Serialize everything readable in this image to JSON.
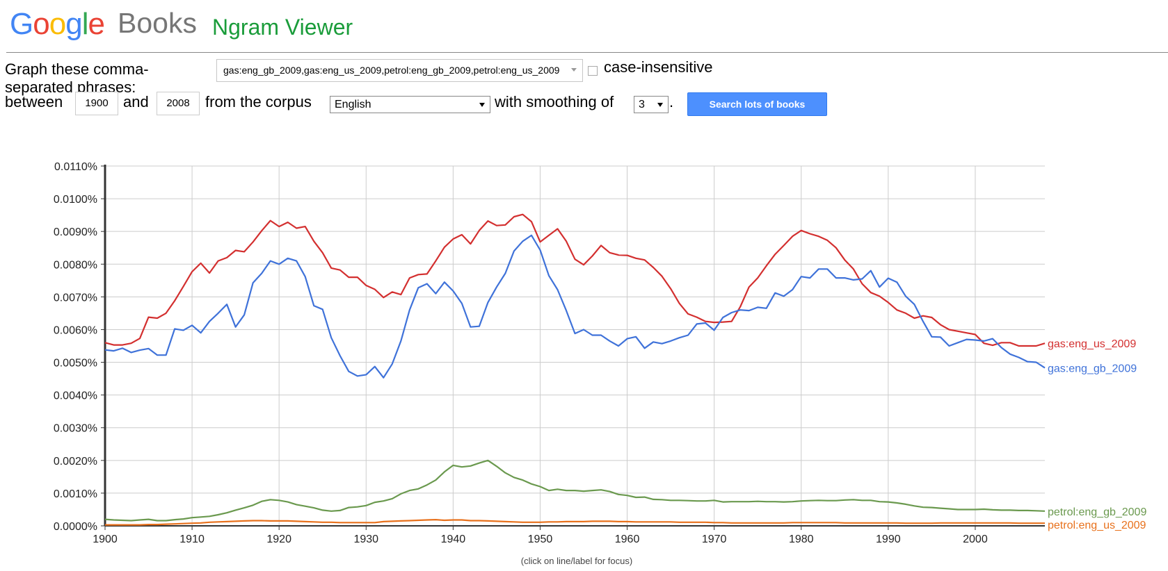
{
  "header": {
    "google_letters": [
      {
        "char": "G",
        "color": "#4285f4"
      },
      {
        "char": "o",
        "color": "#ea4335"
      },
      {
        "char": "o",
        "color": "#fbbc05"
      },
      {
        "char": "g",
        "color": "#4285f4"
      },
      {
        "char": "l",
        "color": "#34a853"
      },
      {
        "char": "e",
        "color": "#ea4335"
      }
    ],
    "books": "Books",
    "title": "Ngram Viewer"
  },
  "form": {
    "graph_label_line1": "Graph these comma-",
    "graph_label_line2": "separated phrases:",
    "query_value": "gas:eng_gb_2009,gas:eng_us_2009,petrol:eng_gb_2009,petrol:eng_us_2009",
    "case_insensitive_label": "case-insensitive",
    "case_insensitive_checked": false,
    "between_label": "between",
    "start_year": "1900",
    "and_label": "and",
    "end_year": "2008",
    "corpus_label": "from the corpus",
    "corpus_value": "English",
    "smoothing_label": "with smoothing of",
    "smoothing_value": "3",
    "period": ".",
    "search_button": "Search lots of books"
  },
  "footer": {
    "note": "(click on line/label for focus)"
  },
  "chart_data": {
    "type": "line",
    "title": "",
    "xlabel": "",
    "ylabel": "",
    "xlim": [
      1900,
      2008
    ],
    "ylim": [
      0,
      0.011
    ],
    "x_ticks": [
      1900,
      1910,
      1920,
      1930,
      1940,
      1950,
      1960,
      1970,
      1980,
      1990,
      2000
    ],
    "y_ticks": [
      "0.0000%",
      "0.0010%",
      "0.0020%",
      "0.0030%",
      "0.0040%",
      "0.0050%",
      "0.0060%",
      "0.0070%",
      "0.0080%",
      "0.0090%",
      "0.0100%",
      "0.0110%"
    ],
    "grid": true,
    "legend": "labels at right end of each line",
    "x_start": 1900,
    "x_step": 1,
    "series": [
      {
        "name": "gas:eng_us_2009",
        "color": "#d32f2f",
        "values": [
          0.0056,
          0.00553,
          0.00553,
          0.00558,
          0.00573,
          0.00638,
          0.00635,
          0.0065,
          0.00688,
          0.00732,
          0.00777,
          0.00803,
          0.00773,
          0.0081,
          0.0082,
          0.00842,
          0.00838,
          0.00868,
          0.00902,
          0.00933,
          0.00915,
          0.00928,
          0.0091,
          0.00915,
          0.0087,
          0.00835,
          0.00788,
          0.00782,
          0.0076,
          0.0076,
          0.00735,
          0.00723,
          0.00698,
          0.00715,
          0.00707,
          0.00758,
          0.00768,
          0.0077,
          0.0081,
          0.00852,
          0.00877,
          0.0089,
          0.00862,
          0.00903,
          0.00932,
          0.00918,
          0.0092,
          0.00945,
          0.00952,
          0.0093,
          0.00868,
          0.00888,
          0.00908,
          0.0087,
          0.00815,
          0.00798,
          0.00825,
          0.00857,
          0.00835,
          0.00828,
          0.00827,
          0.00818,
          0.00813,
          0.0079,
          0.00763,
          0.00725,
          0.0068,
          0.00648,
          0.00638,
          0.00625,
          0.00622,
          0.00623,
          0.00625,
          0.0067,
          0.0073,
          0.00758,
          0.00795,
          0.0083,
          0.00857,
          0.00885,
          0.00903,
          0.00893,
          0.00885,
          0.00873,
          0.0085,
          0.00813,
          0.00785,
          0.0074,
          0.00713,
          0.00702,
          0.00683,
          0.0066,
          0.0065,
          0.00635,
          0.00642,
          0.00637,
          0.00615,
          0.006,
          0.00595,
          0.0059,
          0.00585,
          0.00558,
          0.00552,
          0.0056,
          0.0056,
          0.0055,
          0.0055,
          0.0055,
          0.00558
        ]
      },
      {
        "name": "gas:eng_gb_2009",
        "color": "#3f72d9",
        "values": [
          0.00538,
          0.00535,
          0.00543,
          0.0053,
          0.00537,
          0.00542,
          0.00522,
          0.00522,
          0.00602,
          0.00598,
          0.00613,
          0.0059,
          0.00625,
          0.0065,
          0.00677,
          0.00608,
          0.00645,
          0.00743,
          0.00772,
          0.0081,
          0.008,
          0.00818,
          0.0081,
          0.00762,
          0.00673,
          0.00662,
          0.00575,
          0.0052,
          0.00472,
          0.00458,
          0.00462,
          0.00487,
          0.00453,
          0.00495,
          0.00565,
          0.0066,
          0.00728,
          0.0074,
          0.0071,
          0.00745,
          0.00718,
          0.0068,
          0.00608,
          0.0061,
          0.00683,
          0.0073,
          0.00772,
          0.0084,
          0.0087,
          0.00888,
          0.00843,
          0.00765,
          0.00722,
          0.00658,
          0.00588,
          0.006,
          0.00583,
          0.00583,
          0.00565,
          0.0055,
          0.00572,
          0.00578,
          0.00543,
          0.00562,
          0.00557,
          0.00565,
          0.00575,
          0.00583,
          0.00617,
          0.0062,
          0.00598,
          0.00637,
          0.00652,
          0.0066,
          0.00658,
          0.00668,
          0.00665,
          0.00712,
          0.00702,
          0.00722,
          0.00762,
          0.00758,
          0.00785,
          0.00785,
          0.00758,
          0.00758,
          0.00752,
          0.00755,
          0.0078,
          0.0073,
          0.00757,
          0.00745,
          0.00702,
          0.00677,
          0.00625,
          0.00578,
          0.00577,
          0.0055,
          0.0056,
          0.0057,
          0.00568,
          0.00565,
          0.00572,
          0.00545,
          0.00525,
          0.00515,
          0.00502,
          0.005,
          0.00483
        ]
      },
      {
        "name": "petrol:eng_gb_2009",
        "color": "#6a994e",
        "values": [
          0.0002,
          0.00018,
          0.00017,
          0.00016,
          0.00018,
          0.0002,
          0.00016,
          0.00016,
          0.00019,
          0.00021,
          0.00025,
          0.00027,
          0.00029,
          0.00034,
          0.0004,
          0.00048,
          0.00055,
          0.00063,
          0.00075,
          0.0008,
          0.00078,
          0.00073,
          0.00065,
          0.0006,
          0.00055,
          0.00048,
          0.00045,
          0.00047,
          0.00056,
          0.00058,
          0.00062,
          0.00072,
          0.00076,
          0.00083,
          0.00098,
          0.00108,
          0.00113,
          0.00125,
          0.0014,
          0.00165,
          0.00185,
          0.0018,
          0.00183,
          0.00192,
          0.002,
          0.00182,
          0.00162,
          0.00148,
          0.0014,
          0.00128,
          0.0012,
          0.00108,
          0.00112,
          0.00108,
          0.00108,
          0.00106,
          0.00108,
          0.0011,
          0.00105,
          0.00096,
          0.00093,
          0.00087,
          0.00088,
          0.00081,
          0.0008,
          0.00078,
          0.00078,
          0.00077,
          0.00076,
          0.00076,
          0.00078,
          0.00073,
          0.00074,
          0.00074,
          0.00074,
          0.00075,
          0.00074,
          0.00074,
          0.00073,
          0.00074,
          0.00076,
          0.00077,
          0.00078,
          0.00077,
          0.00077,
          0.00079,
          0.0008,
          0.00078,
          0.00078,
          0.00074,
          0.00073,
          0.0007,
          0.00066,
          0.00061,
          0.00057,
          0.00056,
          0.00054,
          0.00052,
          0.0005,
          0.0005,
          0.0005,
          0.00051,
          0.00049,
          0.00048,
          0.00048,
          0.00047,
          0.00047,
          0.00046,
          0.00045
        ]
      },
      {
        "name": "petrol:eng_us_2009",
        "color": "#e8711c",
        "values": [
          3e-05,
          3e-05,
          3e-05,
          3e-05,
          3e-05,
          4e-05,
          4e-05,
          5e-05,
          6e-05,
          7e-05,
          8e-05,
          9e-05,
          0.00011,
          0.00012,
          0.00013,
          0.00014,
          0.00015,
          0.00016,
          0.00016,
          0.00015,
          0.00015,
          0.00015,
          0.00014,
          0.00013,
          0.00012,
          0.00011,
          0.00011,
          0.0001,
          0.0001,
          0.0001,
          0.0001,
          0.0001,
          0.00013,
          0.00014,
          0.00015,
          0.00016,
          0.00017,
          0.00018,
          0.00019,
          0.00017,
          0.00018,
          0.00018,
          0.00016,
          0.00016,
          0.00015,
          0.00014,
          0.00013,
          0.00012,
          0.00011,
          0.00011,
          0.00011,
          0.00012,
          0.00012,
          0.00013,
          0.00013,
          0.00013,
          0.00014,
          0.00014,
          0.00014,
          0.00013,
          0.00013,
          0.00012,
          0.00012,
          0.00012,
          0.00012,
          0.00012,
          0.00011,
          0.00011,
          0.00011,
          0.00011,
          0.0001,
          0.0001,
          9e-05,
          9e-05,
          9e-05,
          9e-05,
          9e-05,
          9e-05,
          9e-05,
          0.0001,
          0.0001,
          0.0001,
          0.0001,
          0.0001,
          0.0001,
          9e-05,
          9e-05,
          9e-05,
          9e-05,
          9e-05,
          9e-05,
          9e-05,
          8e-05,
          8e-05,
          8e-05,
          8e-05,
          9e-05,
          9e-05,
          9e-05,
          9e-05,
          9e-05,
          9e-05,
          9e-05,
          9e-05,
          9e-05,
          8e-05,
          8e-05,
          8e-05,
          8e-05
        ]
      }
    ]
  }
}
